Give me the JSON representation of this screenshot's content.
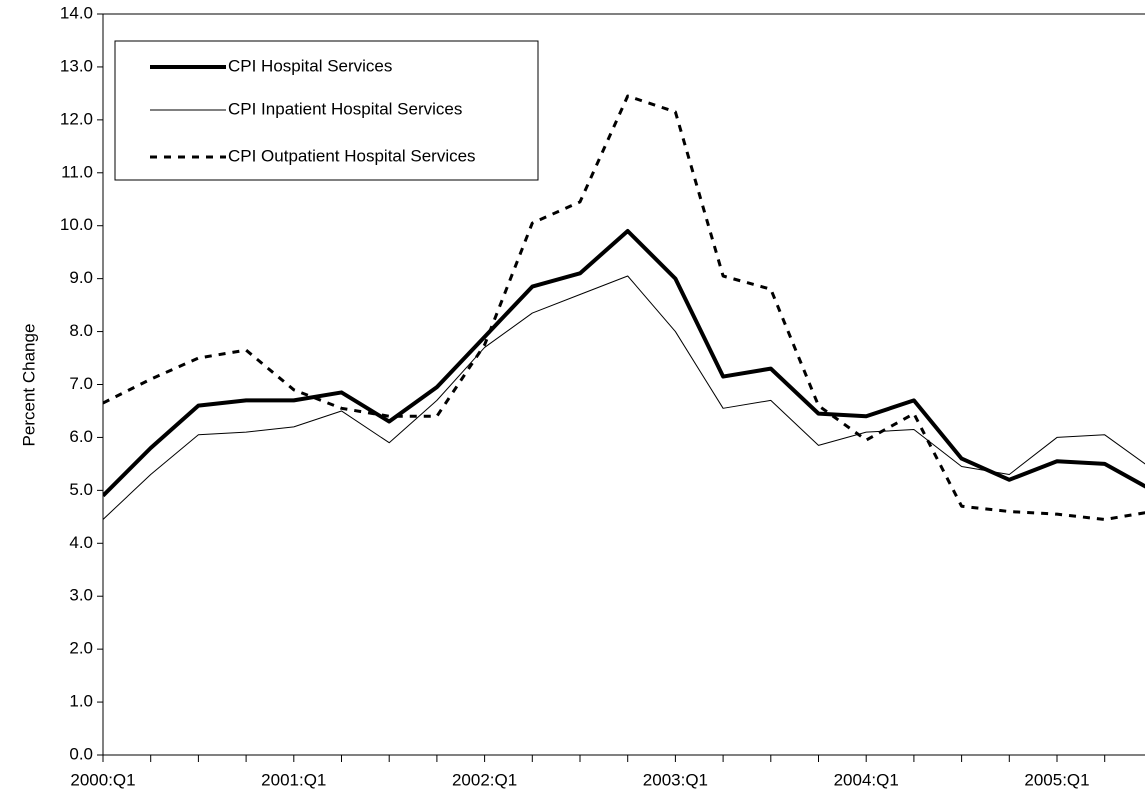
{
  "chart_data": {
    "type": "line",
    "y_label": "Percent Change",
    "categories": [
      "2000:Q1",
      null,
      null,
      null,
      "2001:Q1",
      null,
      null,
      null,
      "2002:Q1",
      null,
      null,
      null,
      "2003:Q1",
      null,
      null,
      null,
      "2004:Q1",
      null,
      null,
      null,
      "2005:Q1",
      null,
      null
    ],
    "series": [
      {
        "name": "CPI Hospital Services",
        "color": "#000000",
        "width": 4,
        "dashed": false,
        "values": [
          4.9,
          5.8,
          6.6,
          6.7,
          6.7,
          6.85,
          6.3,
          6.95,
          7.9,
          8.85,
          9.1,
          9.9,
          9.0,
          7.15,
          7.3,
          6.45,
          6.4,
          6.7,
          5.6,
          5.2,
          5.55,
          5.5,
          5.0
        ]
      },
      {
        "name": "CPI Inpatient Hospital Services",
        "color": "#000000",
        "width": 1,
        "dashed": false,
        "values": [
          4.45,
          5.3,
          6.05,
          6.1,
          6.2,
          6.5,
          5.9,
          6.7,
          7.7,
          8.35,
          8.7,
          9.05,
          8.0,
          6.55,
          6.7,
          5.85,
          6.1,
          6.15,
          5.45,
          5.3,
          6.0,
          6.05,
          5.4
        ]
      },
      {
        "name": "CPI Outpatient Hospital Services",
        "color": "#000000",
        "width": 3,
        "dashed": true,
        "values": [
          6.65,
          7.1,
          7.5,
          7.65,
          6.9,
          6.55,
          6.4,
          6.4,
          7.75,
          10.05,
          10.45,
          12.45,
          12.15,
          9.05,
          8.8,
          6.6,
          5.95,
          6.45,
          4.7,
          4.6,
          4.55,
          4.45,
          4.6
        ]
      }
    ],
    "ylim": [
      0,
      14
    ],
    "yticks": [
      {
        "value": 0,
        "label": "0.0"
      },
      {
        "value": 1,
        "label": "1.0"
      },
      {
        "value": 2,
        "label": "2.0"
      },
      {
        "value": 3,
        "label": "3.0"
      },
      {
        "value": 4,
        "label": "4.0"
      },
      {
        "value": 5,
        "label": "5.0"
      },
      {
        "value": 6,
        "label": "6.0"
      },
      {
        "value": 7,
        "label": "7.0"
      },
      {
        "value": 8,
        "label": "8.0"
      },
      {
        "value": 9,
        "label": "9.0"
      },
      {
        "value": 10,
        "label": "10.0"
      },
      {
        "value": 11,
        "label": "11.0"
      },
      {
        "value": 12,
        "label": "12.0"
      },
      {
        "value": 13,
        "label": "13.0"
      },
      {
        "value": 14,
        "label": "14.0"
      }
    ],
    "grid": false,
    "legend": "upper left"
  }
}
